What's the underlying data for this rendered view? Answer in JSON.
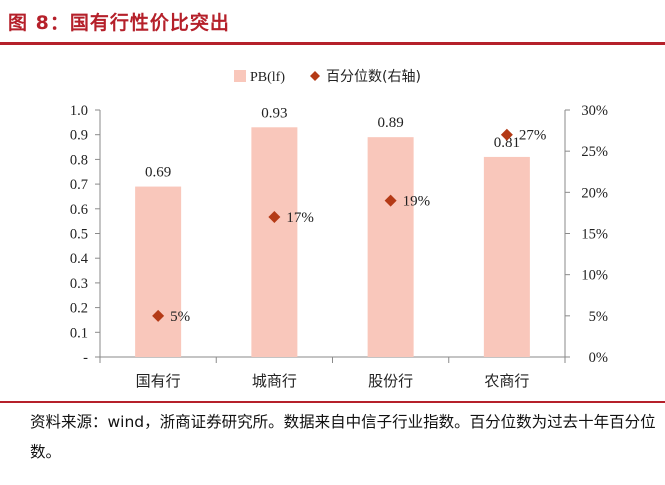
{
  "figure_title": "图 8：国有行性价比突出",
  "source_note": "资料来源：wind，浙商证券研究所。数据来自中信子行业指数。百分位数为过去十年百分位数。",
  "colors": {
    "accent": "#b5202a",
    "bar": "#f9c7bb",
    "marker": "#b43a16"
  },
  "chart_data": {
    "type": "bar",
    "categories": [
      "国有行",
      "城商行",
      "股份行",
      "农商行"
    ],
    "series": [
      {
        "name": "PB(lf)",
        "type": "bar",
        "axis": "left",
        "values": [
          0.69,
          0.93,
          0.89,
          0.81
        ],
        "labels": [
          "0.69",
          "0.93",
          "0.89",
          "0.81"
        ]
      },
      {
        "name": "百分位数(右轴)",
        "type": "scatter",
        "axis": "right",
        "values": [
          5,
          17,
          19,
          27
        ],
        "labels": [
          "5%",
          "17%",
          "19%",
          "27%"
        ]
      }
    ],
    "ylim": [
      0,
      1.0
    ],
    "yticks": [
      "-",
      "0.1",
      "0.2",
      "0.3",
      "0.4",
      "0.5",
      "0.6",
      "0.7",
      "0.8",
      "0.9",
      "1.0"
    ],
    "y2lim": [
      0,
      30
    ],
    "y2ticks": [
      "0%",
      "5%",
      "10%",
      "15%",
      "20%",
      "25%",
      "30%"
    ],
    "legend_position": "top-center",
    "grid": false
  }
}
